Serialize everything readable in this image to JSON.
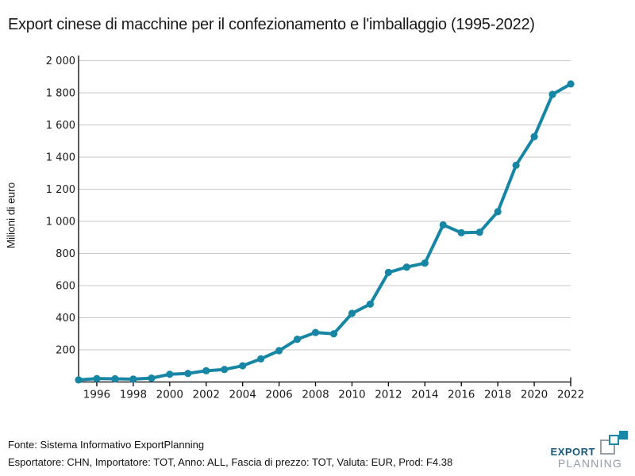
{
  "title": "Export cinese di macchine per il confezionamento e l'imballaggio (1995-2022)",
  "chart_data": {
    "type": "line",
    "title": "Export cinese di macchine per il confezionamento e l'imballaggio (1995-2022)",
    "ylabel": "Milioni di euro",
    "xlabel": "",
    "ylim": [
      0,
      2000
    ],
    "grid": "horizontal-only",
    "legend": "none",
    "line_color": "#1786a4",
    "grid_color": "#c9c9c9",
    "axis_color": "#000000",
    "x": [
      1995,
      1996,
      1997,
      1998,
      1999,
      2000,
      2001,
      2002,
      2003,
      2004,
      2005,
      2006,
      2007,
      2008,
      2009,
      2010,
      2011,
      2012,
      2013,
      2014,
      2015,
      2016,
      2017,
      2018,
      2019,
      2020,
      2021,
      2022
    ],
    "series": [
      {
        "name": "Export cinese di macchine per il confezionamento e l'imballaggio",
        "values": [
          13,
          21,
          20,
          18,
          24,
          48,
          53,
          70,
          78,
          101,
          144,
          195,
          266,
          308,
          300,
          427,
          485,
          682,
          715,
          740,
          978,
          929,
          932,
          1060,
          1349,
          1527,
          1790,
          1855
        ]
      }
    ],
    "y_ticks": [
      {
        "value": 200,
        "label": "200"
      },
      {
        "value": 400,
        "label": "400"
      },
      {
        "value": 600,
        "label": "600"
      },
      {
        "value": 800,
        "label": "800"
      },
      {
        "value": 1000,
        "label": "1 000"
      },
      {
        "value": 1200,
        "label": "1 200"
      },
      {
        "value": 1400,
        "label": "1 400"
      },
      {
        "value": 1600,
        "label": "1 600"
      },
      {
        "value": 1800,
        "label": "1 800"
      },
      {
        "value": 2000,
        "label": "2 000"
      }
    ],
    "x_ticks": [
      {
        "value": 1996,
        "label": "1996"
      },
      {
        "value": 1998,
        "label": "1998"
      },
      {
        "value": 2000,
        "label": "2000"
      },
      {
        "value": 2002,
        "label": "2002"
      },
      {
        "value": 2004,
        "label": "2004"
      },
      {
        "value": 2006,
        "label": "2006"
      },
      {
        "value": 2008,
        "label": "2008"
      },
      {
        "value": 2010,
        "label": "2010"
      },
      {
        "value": 2012,
        "label": "2012"
      },
      {
        "value": 2014,
        "label": "2014"
      },
      {
        "value": 2016,
        "label": "2016"
      },
      {
        "value": 2018,
        "label": "2018"
      },
      {
        "value": 2020,
        "label": "2020"
      },
      {
        "value": 2022,
        "label": "2022"
      }
    ]
  },
  "footer": {
    "source_line": "Fonte: Sistema Informativo ExportPlanning",
    "params_line": "Esportatore: CHN, Importatore: TOT, Anno: ALL, Fascia di prezzo: TOT, Valuta: EUR, Prod: F4.38"
  },
  "logo": {
    "word_top": "EXPORT",
    "word_bottom": "PLANNING",
    "brand_teal": "#1b87a6",
    "brand_gray": "#98a0a7",
    "word_top_color": "#175a7d",
    "word_bottom_color": "#939ba3"
  }
}
